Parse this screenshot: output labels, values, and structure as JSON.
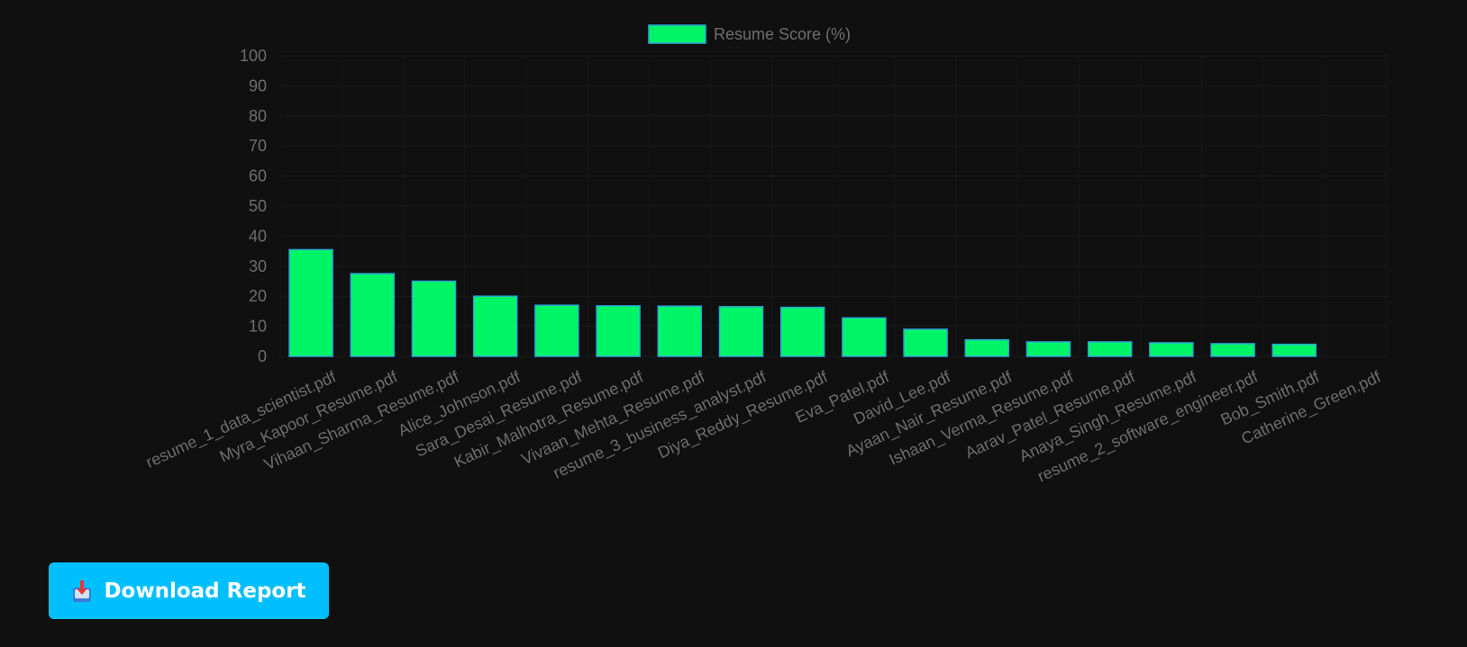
{
  "chart_data": {
    "type": "bar",
    "categories": [
      "resume_1_data_scientist.pdf",
      "Myra_Kapoor_Resume.pdf",
      "Vihaan_Sharma_Resume.pdf",
      "Alice_Johnson.pdf",
      "Sara_Desai_Resume.pdf",
      "Kabir_Malhotra_Resume.pdf",
      "Vivaan_Mehta_Resume.pdf",
      "resume_3_business_analyst.pdf",
      "Diya_Reddy_Resume.pdf",
      "Eva_Patel.pdf",
      "David_Lee.pdf",
      "Ayaan_Nair_Resume.pdf",
      "Ishaan_Verma_Resume.pdf",
      "Aarav_Patel_Resume.pdf",
      "Anaya_Singh_Resume.pdf",
      "resume_2_software_engineer.pdf",
      "Bob_Smith.pdf",
      "Catherine_Green.pdf"
    ],
    "series": [
      {
        "name": "Resume Score (%)",
        "values": [
          35.5,
          27.5,
          25,
          20,
          17,
          16.8,
          16.7,
          16.5,
          16.3,
          12.8,
          9,
          5.5,
          4.8,
          4.8,
          4.5,
          4.2,
          4,
          0
        ],
        "color": "#00f566",
        "border_color": "#2aa8d8"
      }
    ],
    "ylim": [
      0,
      100
    ],
    "yticks": [
      0,
      10,
      20,
      30,
      40,
      50,
      60,
      70,
      80,
      90,
      100
    ],
    "grid": true,
    "legend": "top-center",
    "xlabel": "",
    "ylabel": ""
  },
  "actions": {
    "download_label": "Download Report"
  },
  "icons": {
    "download": "download-tray-icon"
  },
  "colors": {
    "background": "#101010",
    "button": "#00bfff",
    "text_muted": "#6e6e6e"
  }
}
